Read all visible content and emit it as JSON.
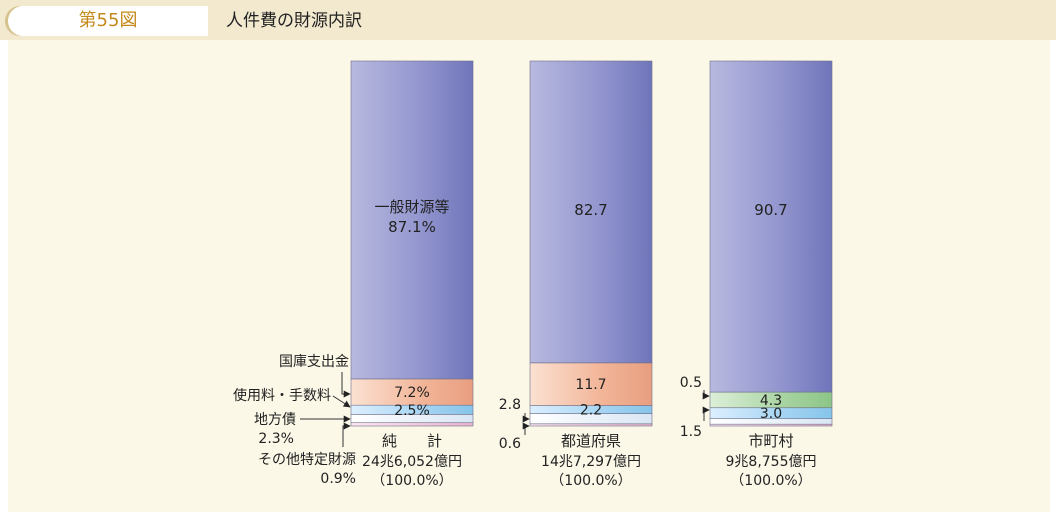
{
  "header": {
    "figure_number": "第55図",
    "title": "人件費の財源内訳"
  },
  "chart_data": {
    "type": "bar",
    "stacked": true,
    "orientation": "vertical",
    "unit": "%",
    "title": "人件費の財源内訳",
    "legend": "labels on bars",
    "categories": [
      {
        "name": "純　　計",
        "amount": "24兆6,052億円",
        "total": "（100.0%）"
      },
      {
        "name": "都道府県",
        "amount": "14兆7,297億円",
        "total": "（100.0%）"
      },
      {
        "name": "市町村",
        "amount": "9兆8,755億円",
        "total": "（100.0%）"
      }
    ],
    "series": [
      {
        "name": "その他特定財源",
        "values": [
          0.9,
          0.6,
          0.5
        ]
      },
      {
        "name": "地方債",
        "values": [
          2.3,
          2.8,
          1.5
        ]
      },
      {
        "name": "使用料・手数料",
        "values": [
          2.5,
          2.2,
          3.0
        ]
      },
      {
        "name": "国庫支出金",
        "values": [
          7.2,
          11.7,
          4.3
        ]
      },
      {
        "name": "一般財源等",
        "values": [
          87.1,
          82.7,
          90.7
        ]
      }
    ],
    "data_labels": [
      [
        "0.9%",
        "2.3%",
        "2.5%",
        "7.2%",
        "87.1%"
      ],
      [
        "0.6",
        "2.8",
        "2.2",
        "11.7",
        "82.7"
      ],
      [
        "0.5",
        "1.5",
        "3.0",
        "4.3",
        "90.7"
      ]
    ],
    "colors": {
      "一般財源等": "#8f94cf",
      "国庫支出金_pref": "#f3bda2",
      "国庫支出金_muni": "#a9d7a6",
      "使用料・手数料": "#a8d7f2",
      "地方債": "#e6eef7",
      "その他特定財源": "#f1c4d8"
    }
  }
}
